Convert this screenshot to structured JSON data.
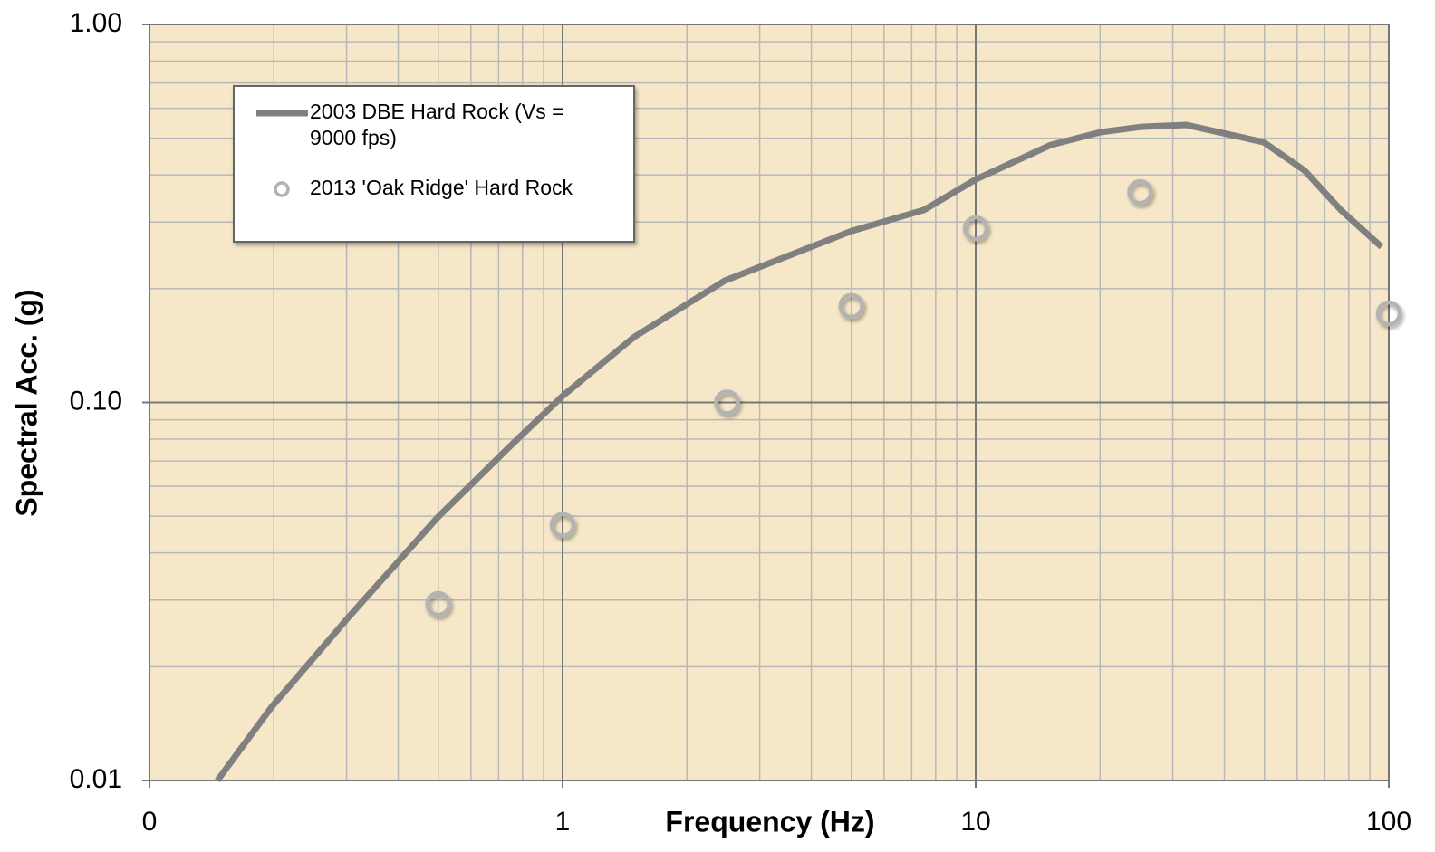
{
  "chart_data": {
    "type": "line",
    "x_label": "Frequency (Hz)",
    "y_label": "Spectral Acc. (g)",
    "xlog": true,
    "ylog": true,
    "grid": true,
    "legend": "upper left",
    "xlim": [
      0.1,
      100
    ],
    "ylim": [
      0.01,
      1
    ],
    "xticks": [
      {
        "value": 0.1,
        "label": "0"
      },
      1,
      10,
      100
    ],
    "yticks": [
      {
        "value": 0.01,
        "label": "0.01"
      },
      {
        "value": 0.1,
        "label": "0.10"
      },
      {
        "value": 1,
        "label": "1.00"
      }
    ],
    "series": [
      {
        "name": "2003 DBE Hard Rock (Vs = 9000 fps)",
        "type": "line",
        "color": "#808080",
        "x": [
          0.146,
          0.198,
          0.303,
          0.497,
          0.75,
          1.0,
          1.49,
          2.47,
          5.0,
          7.5,
          10,
          15.2,
          20.1,
          25.2,
          32.4,
          49.8,
          62.5,
          76.5,
          96
        ],
        "values": [
          0.01,
          0.0157,
          0.027,
          0.0495,
          0.077,
          0.104,
          0.149,
          0.21,
          0.284,
          0.323,
          0.389,
          0.48,
          0.519,
          0.536,
          0.542,
          0.488,
          0.411,
          0.323,
          0.258
        ]
      },
      {
        "name": "2013 'Oak Ridge' Hard Rock",
        "type": "scatter",
        "color": "#b3b3b3",
        "x": [
          0.5,
          1,
          2.5,
          5,
          10,
          25,
          100
        ],
        "values": [
          0.0293,
          0.0474,
          0.1,
          0.18,
          0.289,
          0.36,
          0.172
        ]
      }
    ]
  }
}
